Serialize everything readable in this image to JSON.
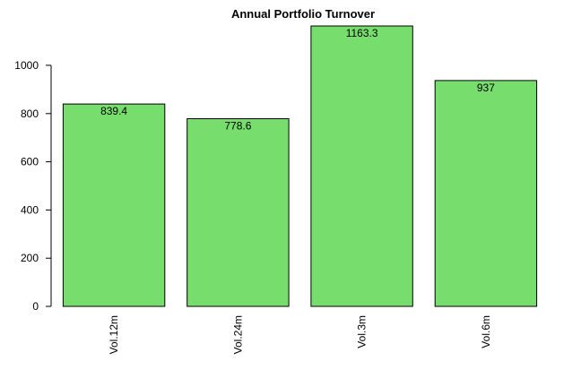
{
  "chart_data": {
    "type": "bar",
    "title": "Annual Portfolio Turnover",
    "xlabel": "",
    "ylabel": "",
    "categories": [
      "Vol.12m",
      "Vol.24m",
      "Vol.3m",
      "Vol.6m"
    ],
    "values": [
      839.4,
      778.6,
      1163.3,
      937
    ],
    "value_labels": [
      "839.4",
      "778.6",
      "1163.3",
      "937"
    ],
    "ylim": [
      0,
      1163.3
    ],
    "yticks": [
      0,
      200,
      400,
      600,
      800,
      1000
    ],
    "ytick_labels": [
      "0",
      "200",
      "400",
      "600",
      "800",
      "1000"
    ],
    "bar_color": "#77dd6d",
    "grid": false,
    "legend": "none"
  }
}
